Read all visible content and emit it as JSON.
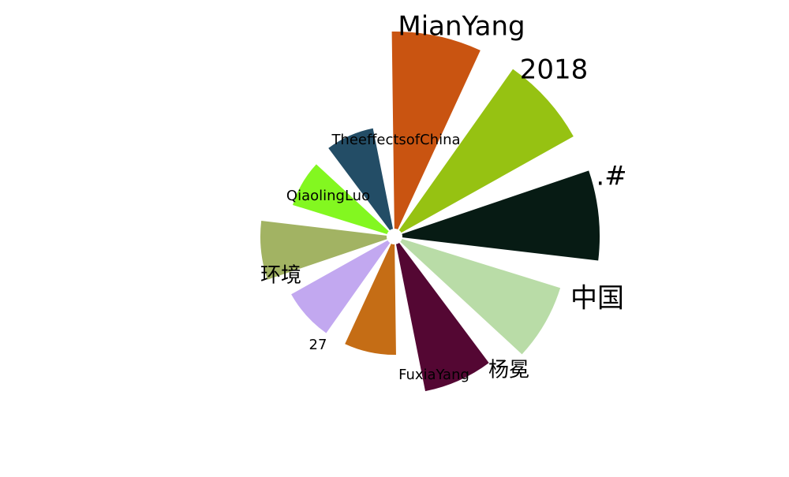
{
  "chart_data": {
    "type": "polar-bar",
    "categories": [
      "MianYang",
      "2018",
      ".#",
      "中国",
      "杨冕",
      "FuxiaYang",
      "27",
      "环境",
      "QiaolingLuo",
      "TheeffectsofChina"
    ],
    "values": [
      250,
      250,
      250,
      210,
      190,
      140,
      140,
      160,
      125,
      130
    ],
    "colors": [
      "#c95411",
      "#96c212",
      "#071b14",
      "#b9dca7",
      "#540733",
      "#c56d15",
      "#c2a8f0",
      "#a2b363",
      "#83f720",
      "#234d66"
    ],
    "label_emphasis": [
      "large",
      "large",
      "large",
      "large",
      "medium",
      "small",
      "small",
      "medium",
      "small",
      "small"
    ],
    "start_angle_deg": 90,
    "direction": "clockwise",
    "include_27_slot": true
  }
}
